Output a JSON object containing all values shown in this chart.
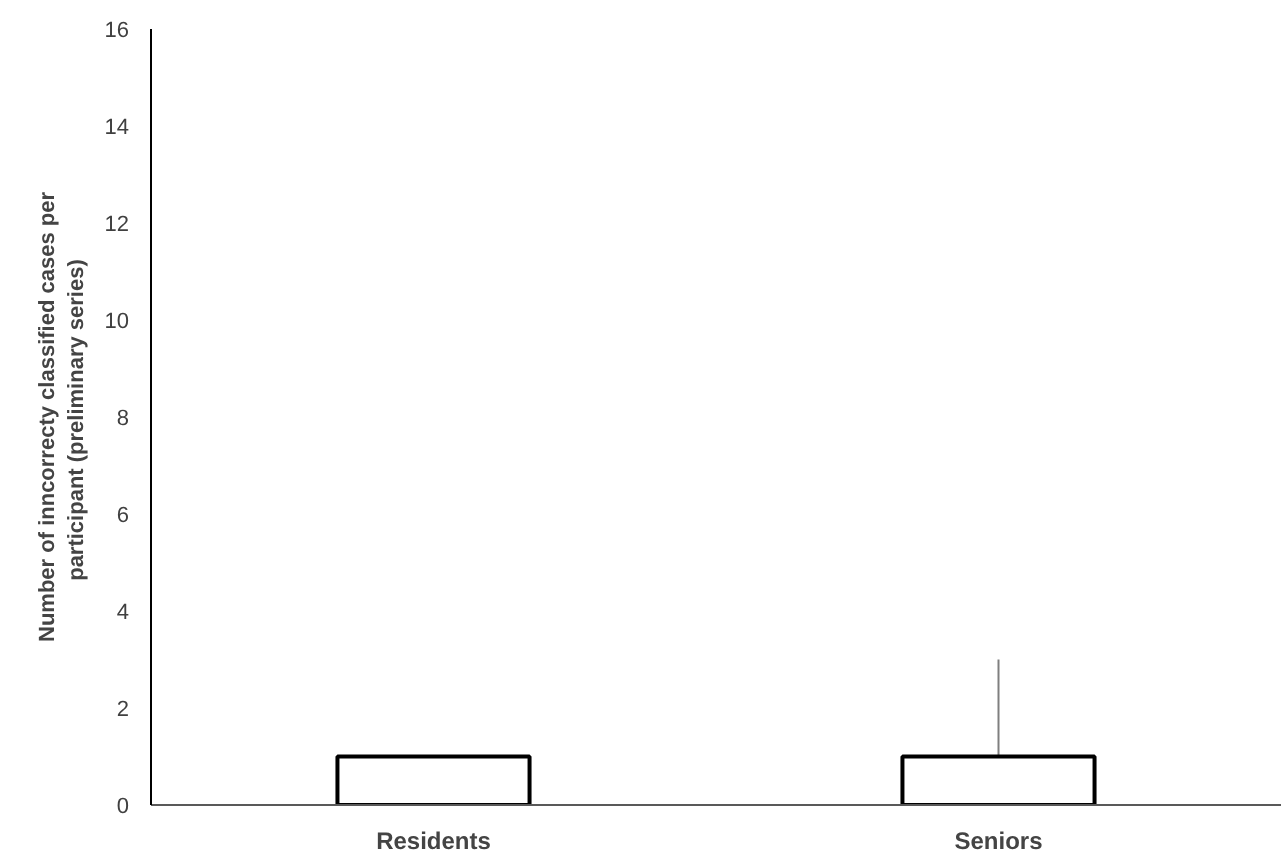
{
  "chart_data": {
    "type": "box",
    "ylabel": "Number of inncorrecty classified cases per\nparticipant  (preliminary series)",
    "categories": [
      "Residents",
      "Seniors"
    ],
    "boxes": [
      {
        "low": 0,
        "q1": 0,
        "median": 0,
        "q3": 1,
        "high": 1
      },
      {
        "low": 0,
        "q1": 0,
        "median": 0,
        "q3": 1,
        "high": 3
      }
    ],
    "ylim": [
      0,
      16
    ],
    "yticks": [
      0,
      2,
      4,
      6,
      8,
      10,
      12,
      14,
      16
    ],
    "grid": false
  }
}
